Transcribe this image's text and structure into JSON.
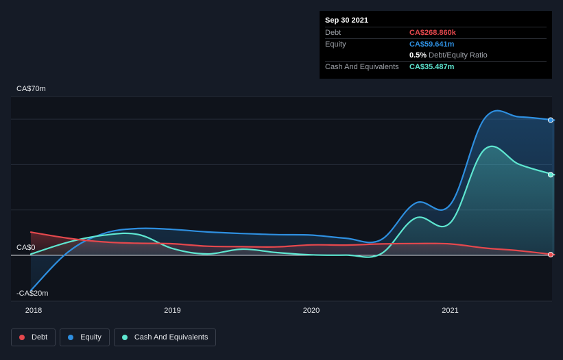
{
  "tooltip": {
    "date": "Sep 30 2021",
    "debt_label": "Debt",
    "debt_value": "CA$268.860k",
    "equity_label": "Equity",
    "equity_value": "CA$59.641m",
    "ratio_value": "0.5%",
    "ratio_label": "Debt/Equity Ratio",
    "cash_label": "Cash And Equivalents",
    "cash_value": "CA$35.487m"
  },
  "legend": [
    {
      "name": "Debt",
      "color": "#e5484d"
    },
    {
      "name": "Equity",
      "color": "#2e8fe0"
    },
    {
      "name": "Cash And Equivalents",
      "color": "#5ee6d0"
    }
  ],
  "chart_data": {
    "type": "area",
    "y_unit_labels": [
      "CA$70m",
      "CA$0",
      "-CA$20m"
    ],
    "ylim": [
      -20,
      70
    ],
    "xlim": [
      2017.94,
      2021.75
    ],
    "x_ticks": [
      "2018",
      "2019",
      "2020",
      "2021"
    ],
    "grid": true,
    "legend_position": "bottom-left",
    "series": [
      {
        "name": "Debt",
        "color": "#e5484d",
        "x": [
          2017.98,
          2018.25,
          2018.5,
          2018.75,
          2019.0,
          2019.25,
          2019.5,
          2019.75,
          2020.0,
          2020.25,
          2020.5,
          2020.75,
          2021.0,
          2021.25,
          2021.5,
          2021.75
        ],
        "values": [
          10.2,
          7.5,
          5.9,
          5.3,
          5.1,
          4.0,
          3.8,
          3.7,
          4.6,
          4.5,
          5.0,
          5.2,
          5.0,
          3.2,
          2.0,
          0.27
        ]
      },
      {
        "name": "Equity",
        "color": "#2e8fe0",
        "x": [
          2017.98,
          2018.25,
          2018.5,
          2018.75,
          2019.0,
          2019.25,
          2019.5,
          2019.75,
          2020.0,
          2020.25,
          2020.5,
          2020.75,
          2021.0,
          2021.25,
          2021.5,
          2021.75
        ],
        "values": [
          -15.5,
          1.5,
          9.5,
          11.8,
          11.4,
          10.3,
          9.6,
          9.1,
          8.9,
          7.5,
          6.8,
          23.0,
          22.3,
          60.5,
          61.0,
          59.6
        ]
      },
      {
        "name": "Cash And Equivalents",
        "color": "#5ee6d0",
        "x": [
          2017.98,
          2018.25,
          2018.5,
          2018.75,
          2019.0,
          2019.25,
          2019.5,
          2019.75,
          2020.0,
          2020.25,
          2020.5,
          2020.75,
          2021.0,
          2021.25,
          2021.5,
          2021.75
        ],
        "values": [
          0.5,
          5.8,
          8.8,
          9.2,
          3.0,
          0.6,
          2.7,
          1.2,
          0.2,
          0.1,
          0.6,
          16.4,
          14.3,
          46.8,
          40.0,
          35.5
        ]
      }
    ]
  }
}
